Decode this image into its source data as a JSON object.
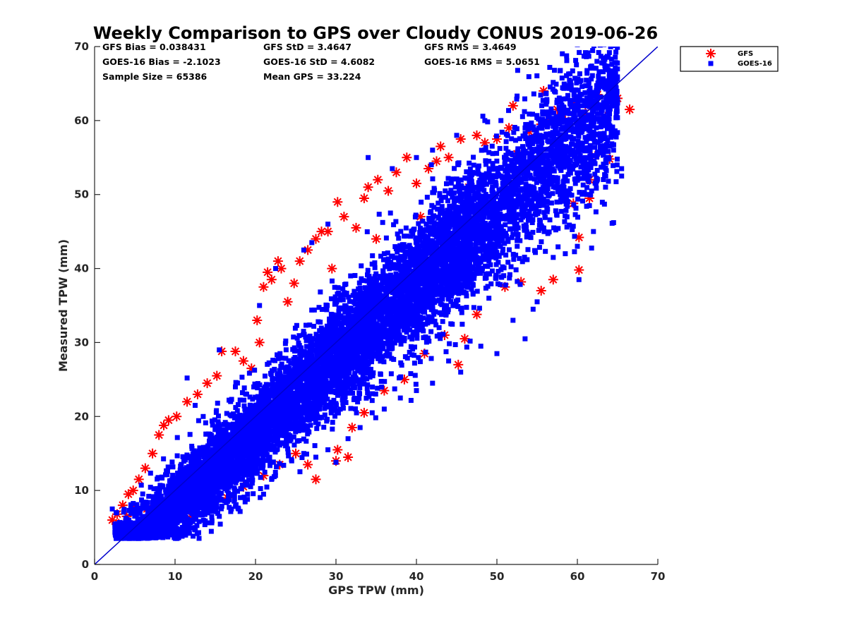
{
  "chart_data": {
    "type": "scatter",
    "title": "Weekly Comparison to GPS over Cloudy CONUS 2019-06-26",
    "xlabel": "GPS TPW (mm)",
    "ylabel": "Measured TPW (mm)",
    "xlim": [
      0,
      70
    ],
    "ylim": [
      0,
      70
    ],
    "xticks": [
      "0",
      "10",
      "20",
      "30",
      "40",
      "50",
      "60",
      "70"
    ],
    "yticks": [
      "0",
      "10",
      "20",
      "30",
      "40",
      "50",
      "60",
      "70"
    ],
    "grid": false,
    "legend_position": "outside-top-right",
    "stats": [
      [
        "GFS Bias = 0.038431",
        "GFS StD = 3.4647",
        "GFS RMS = 3.4649"
      ],
      [
        "GOES-16 Bias = -2.1023",
        "GOES-16 StD = 4.6082",
        "GOES-16 RMS = 5.0651"
      ],
      [
        "Sample Size = 65386",
        "Mean GPS = 33.224",
        ""
      ]
    ],
    "reference_line": {
      "x": [
        0,
        70
      ],
      "y": [
        0,
        70
      ],
      "color": "#0000cc"
    },
    "series": [
      {
        "name": "GFS",
        "marker": "asterisk",
        "color": "#ff0000",
        "points": [
          [
            2.2,
            6.0
          ],
          [
            2.8,
            6.8
          ],
          [
            3.5,
            8.0
          ],
          [
            4.2,
            9.5
          ],
          [
            4.8,
            10.0
          ],
          [
            5.5,
            11.5
          ],
          [
            6.3,
            13.0
          ],
          [
            7.2,
            15.0
          ],
          [
            8.0,
            17.5
          ],
          [
            8.6,
            18.8
          ],
          [
            9.2,
            19.5
          ],
          [
            10.2,
            20.0
          ],
          [
            11.5,
            22.0
          ],
          [
            12.8,
            23.0
          ],
          [
            14.0,
            24.5
          ],
          [
            15.2,
            25.5
          ],
          [
            15.8,
            28.8
          ],
          [
            17.5,
            28.8
          ],
          [
            18.5,
            27.5
          ],
          [
            19.5,
            26.5
          ],
          [
            20.2,
            33.0
          ],
          [
            21.0,
            37.5
          ],
          [
            21.5,
            39.5
          ],
          [
            22.0,
            38.5
          ],
          [
            22.8,
            41.0
          ],
          [
            23.2,
            40.0
          ],
          [
            24.8,
            38.0
          ],
          [
            25.5,
            41.0
          ],
          [
            26.5,
            42.5
          ],
          [
            27.5,
            44.0
          ],
          [
            28.2,
            45.0
          ],
          [
            29.0,
            45.0
          ],
          [
            30.2,
            49.0
          ],
          [
            31.0,
            47.0
          ],
          [
            32.5,
            45.5
          ],
          [
            33.5,
            49.5
          ],
          [
            34.0,
            51.0
          ],
          [
            35.2,
            52.0
          ],
          [
            36.5,
            50.5
          ],
          [
            37.5,
            53.0
          ],
          [
            38.8,
            55.0
          ],
          [
            40.0,
            51.5
          ],
          [
            41.5,
            53.5
          ],
          [
            42.5,
            54.5
          ],
          [
            43.0,
            56.5
          ],
          [
            44.0,
            55.0
          ],
          [
            45.5,
            57.5
          ],
          [
            47.5,
            58.0
          ],
          [
            48.5,
            57.0
          ],
          [
            50.0,
            57.5
          ],
          [
            51.5,
            59.0
          ],
          [
            52.0,
            62.0
          ],
          [
            54.0,
            58.5
          ],
          [
            55.5,
            59.5
          ],
          [
            55.8,
            64.0
          ],
          [
            56.5,
            60.0
          ],
          [
            57.5,
            61.5
          ],
          [
            58.5,
            60.0
          ],
          [
            59.5,
            62.5
          ],
          [
            61.0,
            61.0
          ],
          [
            62.5,
            63.5
          ],
          [
            63.5,
            60.5
          ],
          [
            64.5,
            62.5
          ],
          [
            65.0,
            63.0
          ],
          [
            66.5,
            61.5
          ],
          [
            64.0,
            54.8
          ],
          [
            62.2,
            55.2
          ],
          [
            61.5,
            52.0
          ],
          [
            61.5,
            49.5
          ],
          [
            59.5,
            48.8
          ],
          [
            60.2,
            44.2
          ],
          [
            60.2,
            39.8
          ],
          [
            57.0,
            38.5
          ],
          [
            55.5,
            37.0
          ],
          [
            53.0,
            38.2
          ],
          [
            51.0,
            37.5
          ],
          [
            47.5,
            33.8
          ],
          [
            46.0,
            30.5
          ],
          [
            45.2,
            27.0
          ],
          [
            43.5,
            31.0
          ],
          [
            41.0,
            28.5
          ],
          [
            38.5,
            25.0
          ],
          [
            36.0,
            23.5
          ],
          [
            33.5,
            20.5
          ],
          [
            32.0,
            18.5
          ],
          [
            30.2,
            15.5
          ],
          [
            31.5,
            14.5
          ],
          [
            30.0,
            14.0
          ],
          [
            27.5,
            11.5
          ],
          [
            26.5,
            13.5
          ],
          [
            25.0,
            15.0
          ],
          [
            23.0,
            13.5
          ],
          [
            21.0,
            12.0
          ],
          [
            18.5,
            10.5
          ],
          [
            16.5,
            9.0
          ],
          [
            14.0,
            7.5
          ],
          [
            12.0,
            6.5
          ],
          [
            10.5,
            7.0
          ],
          [
            8.5,
            6.8
          ],
          [
            6.5,
            7.5
          ],
          [
            5.0,
            7.8
          ],
          [
            4.0,
            6.5
          ],
          [
            3.0,
            5.5
          ],
          [
            20.5,
            30.0
          ],
          [
            24.0,
            35.5
          ],
          [
            29.5,
            40.0
          ],
          [
            35.0,
            44.0
          ],
          [
            40.5,
            47.0
          ],
          [
            46.5,
            51.0
          ],
          [
            52.5,
            55.5
          ]
        ]
      },
      {
        "name": "GOES-16",
        "marker": "square",
        "color": "#0000ff",
        "cloud": {
          "x_range": [
            2.5,
            65
          ],
          "mean_offset": -2.1,
          "spread": 4.6,
          "count": 9000
        },
        "points": [
          [
            2.2,
            7.5
          ],
          [
            3.0,
            4.5
          ],
          [
            4.0,
            3.8
          ],
          [
            5.5,
            3.5
          ],
          [
            7.0,
            3.8
          ],
          [
            9.0,
            4.0
          ],
          [
            11.5,
            25.2
          ],
          [
            12.5,
            21.5
          ],
          [
            13.5,
            20.0
          ],
          [
            15.5,
            29.0
          ],
          [
            17.5,
            24.0
          ],
          [
            20.5,
            35.0
          ],
          [
            22.5,
            40.0
          ],
          [
            26.0,
            42.5
          ],
          [
            27.0,
            43.5
          ],
          [
            29.0,
            46.0
          ],
          [
            34.0,
            55.0
          ],
          [
            37.0,
            53.5
          ],
          [
            40.0,
            55.0
          ],
          [
            42.0,
            56.0
          ],
          [
            45.0,
            58.0
          ],
          [
            48.5,
            60.0
          ],
          [
            50.5,
            60.0
          ],
          [
            53.5,
            59.0
          ],
          [
            56.5,
            60.5
          ],
          [
            58.5,
            61.0
          ],
          [
            60.5,
            62.0
          ],
          [
            62.0,
            59.5
          ],
          [
            63.0,
            58.0
          ],
          [
            64.5,
            56.0
          ],
          [
            65.5,
            53.5
          ],
          [
            65.5,
            52.5
          ],
          [
            63.5,
            51.0
          ],
          [
            64.5,
            46.2
          ],
          [
            62.0,
            45.0
          ],
          [
            61.5,
            48.5
          ],
          [
            60.0,
            43.0
          ],
          [
            60.2,
            38.5
          ],
          [
            58.5,
            42.0
          ],
          [
            57.0,
            41.5
          ],
          [
            55.0,
            35.5
          ],
          [
            54.5,
            34.5
          ],
          [
            53.5,
            30.5
          ],
          [
            52.0,
            33.0
          ],
          [
            50.0,
            28.5
          ],
          [
            48.0,
            29.5
          ],
          [
            45.5,
            26.0
          ],
          [
            44.0,
            27.5
          ],
          [
            42.0,
            24.5
          ],
          [
            40.0,
            23.5
          ],
          [
            38.0,
            22.5
          ],
          [
            36.0,
            21.0
          ],
          [
            34.5,
            20.5
          ],
          [
            33.0,
            18.5
          ],
          [
            31.5,
            17.0
          ],
          [
            30.0,
            13.8
          ],
          [
            29.0,
            15.5
          ],
          [
            27.5,
            14.5
          ],
          [
            26.0,
            15.0
          ],
          [
            24.5,
            14.0
          ],
          [
            22.0,
            11.5
          ],
          [
            21.0,
            9.5
          ],
          [
            19.0,
            8.8
          ],
          [
            17.0,
            7.5
          ],
          [
            15.5,
            6.5
          ],
          [
            13.0,
            5.8
          ],
          [
            11.0,
            5.0
          ],
          [
            9.5,
            4.5
          ],
          [
            8.0,
            3.8
          ]
        ]
      }
    ]
  }
}
